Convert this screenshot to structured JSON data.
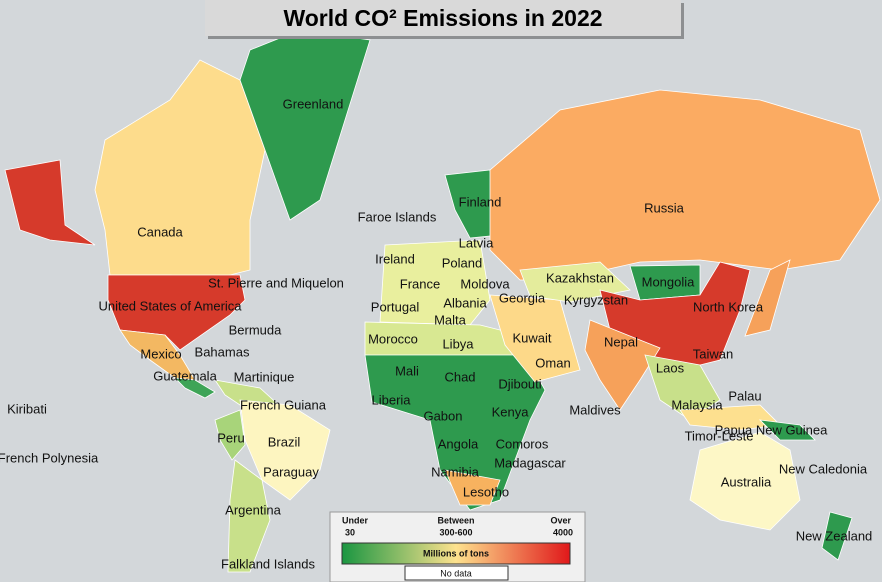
{
  "title": "World CO² Emissions in 2022",
  "country_labels": [
    "Greenland",
    "Finland",
    "Faroe Islands",
    "Latvia",
    "Russia",
    "Canada",
    "Ireland",
    "Poland",
    "Kazakhstan",
    "Mongolia",
    "St. Pierre and Miquelon",
    "France",
    "Moldova",
    "Georgia",
    "Kyrgyzstan",
    "North Korea",
    "United States of America",
    "Portugal",
    "Albania",
    "Malta",
    "Bermuda",
    "Morocco",
    "Libya",
    "Kuwait",
    "Nepal",
    "Taiwan",
    "Mexico",
    "Bahamas",
    "Oman",
    "Guatemala",
    "Martinique",
    "Mali",
    "Chad",
    "Djibouti",
    "Laos",
    "Palau",
    "Kiribati",
    "Liberia",
    "French Guiana",
    "Gabon",
    "Kenya",
    "Maldives",
    "Malaysia",
    "Peru",
    "Brazil",
    "Papua New Guinea",
    "Timor-Leste",
    "Comoros",
    "Angola",
    "French Polynesia",
    "Madagascar",
    "Namibia",
    "Paraguay",
    "New Caledonia",
    "Australia",
    "Lesotho",
    "Argentina",
    "New Zealand",
    "Falkland Islands"
  ],
  "legend": {
    "low_label": "Under",
    "low_value": 30,
    "mid_label": "Between",
    "mid_value": "300-600",
    "high_label": "Over",
    "high_value": 4000,
    "unit": "Millions of tons",
    "no_data": "No data"
  }
}
